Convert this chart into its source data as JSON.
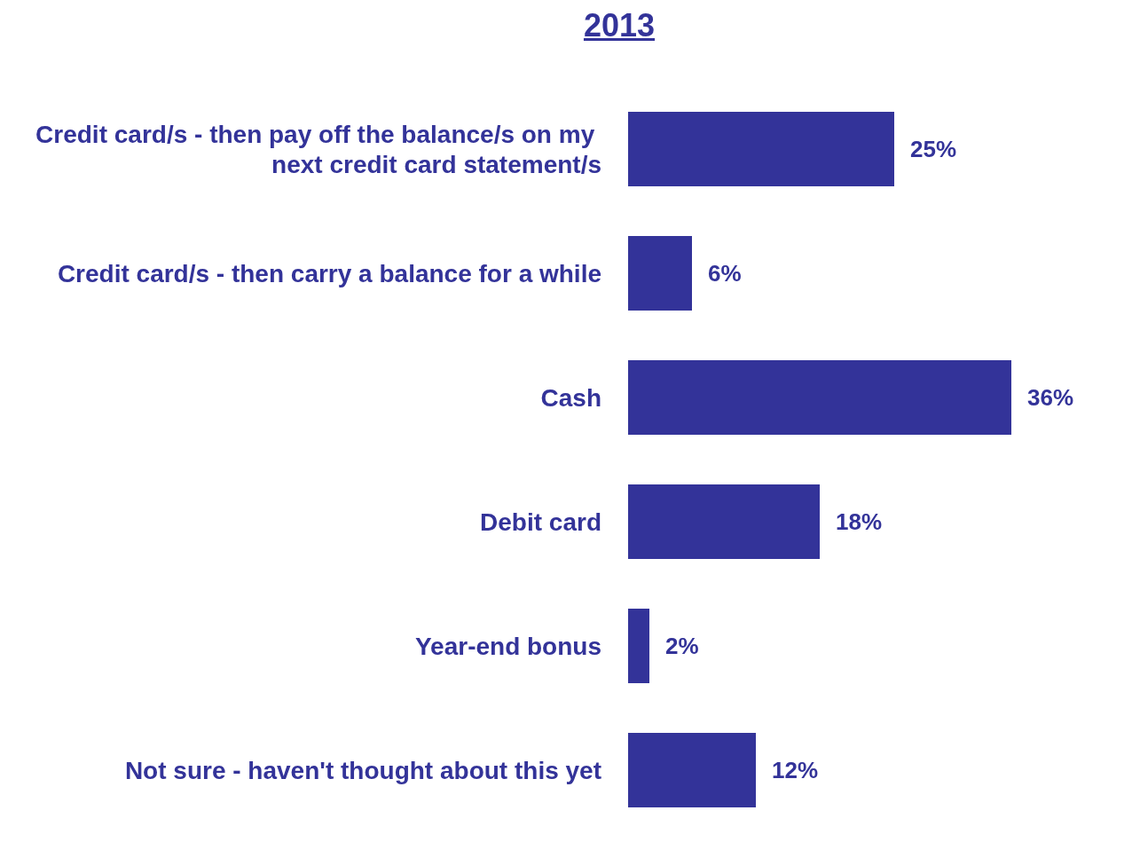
{
  "chart_data": {
    "type": "bar",
    "title": "2013",
    "orientation": "horizontal",
    "categories": [
      "Credit card/s - then pay off the balance/s on my next credit card statement/s",
      "Credit card/s - then carry a balance for a while",
      "Cash",
      "Debit card",
      "Year-end bonus",
      "Not sure - haven't thought about this yet"
    ],
    "values": [
      25,
      6,
      36,
      18,
      2,
      12
    ],
    "value_labels": [
      "25%",
      "6%",
      "36%",
      "18%",
      "2%",
      "12%"
    ],
    "color": "#333399",
    "tick_labels": "y"
  }
}
